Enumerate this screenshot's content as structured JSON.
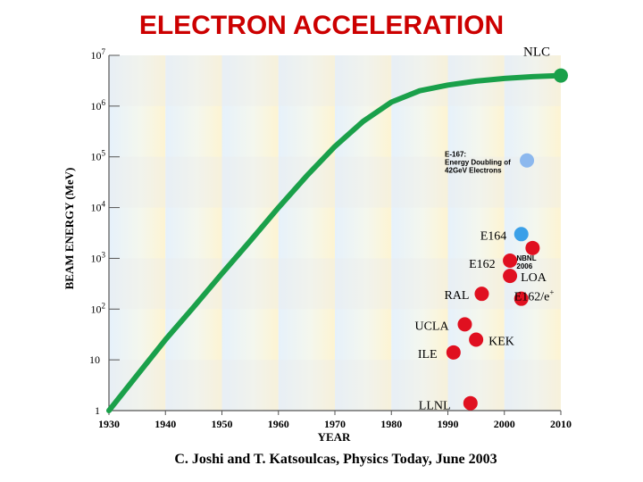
{
  "slide_title": "ELECTRON ACCELERATION",
  "citation": "C. Joshi and T. Katsoulcas, Physics Today, June 2003",
  "chart_data": {
    "type": "scatter",
    "xlabel": "YEAR",
    "ylabel": "BEAM ENERGY (MeV)",
    "xlim": [
      1930,
      2010
    ],
    "ylim_log10": [
      0,
      7
    ],
    "y_scale": "log",
    "grid": false,
    "x_ticks": [
      {
        "value": 1930,
        "label": "1930"
      },
      {
        "value": 1940,
        "label": "1940"
      },
      {
        "value": 1950,
        "label": "1950"
      },
      {
        "value": 1960,
        "label": "1960"
      },
      {
        "value": 1970,
        "label": "1970"
      },
      {
        "value": 1980,
        "label": "1980"
      },
      {
        "value": 1990,
        "label": "1990"
      },
      {
        "value": 2000,
        "label": "2000"
      },
      {
        "value": 2010,
        "label": "2010"
      }
    ],
    "y_ticks": [
      {
        "exp": 0,
        "base": "1",
        "sup": ""
      },
      {
        "exp": 1,
        "base": "10",
        "sup": ""
      },
      {
        "exp": 2,
        "base": "10",
        "sup": "2"
      },
      {
        "exp": 3,
        "base": "10",
        "sup": "3"
      },
      {
        "exp": 4,
        "base": "10",
        "sup": "4"
      },
      {
        "exp": 5,
        "base": "10",
        "sup": "5"
      },
      {
        "exp": 6,
        "base": "10",
        "sup": "6"
      },
      {
        "exp": 7,
        "base": "10",
        "sup": "7"
      }
    ],
    "colors": {
      "curve": "#1aa04a",
      "red_points": "#e01020",
      "blue_points": "#3aa0e8",
      "light_blue_points": "#8cb8ee",
      "band_blue": "#e6f1fb",
      "band_yellow": "#fdf4d2",
      "band_gray": "#ebebeb",
      "title": "#cc0000"
    },
    "conventional_curve": {
      "label": "NLC",
      "x": [
        1930,
        1935,
        1940,
        1945,
        1950,
        1955,
        1960,
        1965,
        1970,
        1975,
        1980,
        1985,
        1990,
        1995,
        2000,
        2005,
        2010
      ],
      "y": [
        1,
        5,
        25,
        110,
        500,
        2200,
        10000,
        42000,
        160000,
        500000,
        1200000,
        2000000,
        2600000,
        3100000,
        3500000,
        3800000,
        4000000
      ]
    },
    "red_points": [
      {
        "label": "LLNL",
        "x": 1994,
        "y": 1.4
      },
      {
        "label": "ILE",
        "x": 1991,
        "y": 14
      },
      {
        "label": "KEK",
        "x": 1995,
        "y": 25
      },
      {
        "label": "UCLA",
        "x": 1993,
        "y": 50
      },
      {
        "label": "RAL",
        "x": 1996,
        "y": 200
      },
      {
        "label": "LOA",
        "x": 2001,
        "y": 450
      },
      {
        "label": "E162",
        "x": 2001,
        "y": 900
      },
      {
        "label": "E162/e+",
        "x": 2003,
        "y": 160
      },
      {
        "label": "NBNL\n2006",
        "x": 2005,
        "y": 1600
      }
    ],
    "blue_points": [
      {
        "label": "E164",
        "x": 2003,
        "y": 3000
      }
    ],
    "light_blue_points": [
      {
        "label": "E-167:\nEnergy Doubling of\n42GeV Electrons",
        "x": 2004,
        "y": 85000
      }
    ]
  }
}
